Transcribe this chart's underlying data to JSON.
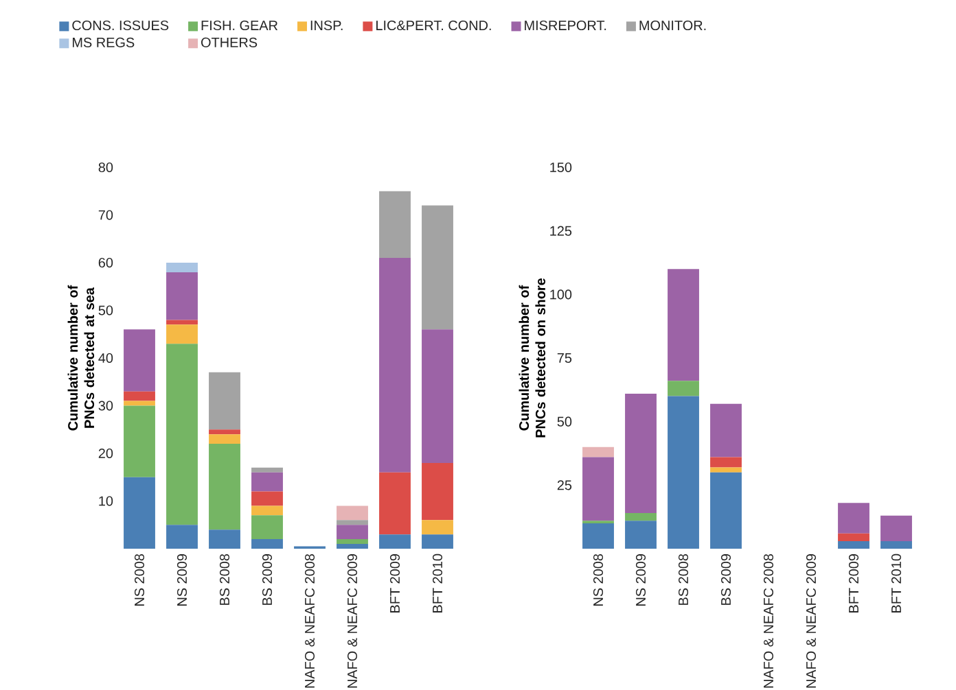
{
  "chart_data": [
    {
      "type": "bar",
      "stacked": true,
      "ylabel": "Cumulative number of PNCs detected at sea",
      "legend": "top",
      "ylim": [
        0,
        80
      ],
      "yticks": [
        10,
        20,
        30,
        40,
        50,
        60,
        70,
        80
      ],
      "grid": false,
      "categories": [
        "NS 2008",
        "NS 2009",
        "BS 2008",
        "BS 2009",
        "NAFO & NEAFC 2008",
        "NAFO & NEAFC 2009",
        "BFT 2009",
        "BFT 2010"
      ],
      "series": [
        {
          "name": "CONS. ISSUES",
          "color": "#4a7fb5",
          "values": [
            15,
            5,
            4,
            2,
            0.5,
            1,
            3,
            3
          ]
        },
        {
          "name": "FISH. GEAR",
          "color": "#75b564",
          "values": [
            15,
            38,
            18,
            5,
            0,
            1,
            0,
            0
          ]
        },
        {
          "name": "INSP.",
          "color": "#f5b945",
          "values": [
            1,
            4,
            2,
            2,
            0,
            0,
            0,
            3
          ]
        },
        {
          "name": "LIC&PERT. COND.",
          "color": "#dc4d48",
          "values": [
            2,
            1,
            1,
            3,
            0,
            0,
            13,
            12
          ]
        },
        {
          "name": "MISREPORT.",
          "color": "#9c63a6",
          "values": [
            13,
            10,
            0,
            4,
            0,
            3,
            45,
            28
          ]
        },
        {
          "name": "MONITOR.",
          "color": "#a3a3a3",
          "values": [
            0,
            0,
            12,
            1,
            0,
            1,
            14,
            26
          ]
        },
        {
          "name": "MS REGS",
          "color": "#a9c4e3",
          "values": [
            0,
            2,
            0,
            0,
            0,
            0,
            0,
            0
          ]
        },
        {
          "name": "OTHERS",
          "color": "#e6b3b5",
          "values": [
            0,
            0,
            0,
            0,
            0,
            3,
            0,
            0
          ]
        }
      ]
    },
    {
      "type": "bar",
      "stacked": true,
      "ylabel": "Cumulative number of PNCs detected on shore",
      "ylim": [
        0,
        150
      ],
      "yticks": [
        25,
        50,
        75,
        100,
        125,
        150
      ],
      "grid": false,
      "categories": [
        "NS 2008",
        "NS 2009",
        "BS 2008",
        "BS 2009",
        "NAFO & NEAFC 2008",
        "NAFO & NEAFC 2009",
        "BFT 2009",
        "BFT 2010"
      ],
      "series": [
        {
          "color": "#4a7fb5",
          "values": [
            10,
            11,
            60,
            30,
            0,
            0,
            3,
            3
          ]
        },
        {
          "color": "#75b564",
          "values": [
            1,
            3,
            6,
            0,
            0,
            0,
            0,
            0
          ]
        },
        {
          "color": "#f5b945",
          "values": [
            0,
            0,
            0,
            2,
            0,
            0,
            0,
            0
          ]
        },
        {
          "color": "#dc4d48",
          "values": [
            0,
            0,
            0,
            4,
            0,
            0,
            3,
            0
          ]
        },
        {
          "color": "#9c63a6",
          "values": [
            25,
            47,
            44,
            21,
            0,
            0,
            12,
            10
          ]
        },
        {
          "color": "#a3a3a3",
          "values": [
            0,
            0,
            0,
            0,
            0,
            0,
            0,
            0
          ]
        },
        {
          "color": "#a9c4e3",
          "values": [
            0,
            0,
            0,
            0,
            0,
            0,
            0,
            0
          ]
        },
        {
          "color": "#e6b3b5",
          "values": [
            4,
            0,
            0,
            0,
            0,
            0,
            0,
            0
          ]
        }
      ]
    }
  ]
}
